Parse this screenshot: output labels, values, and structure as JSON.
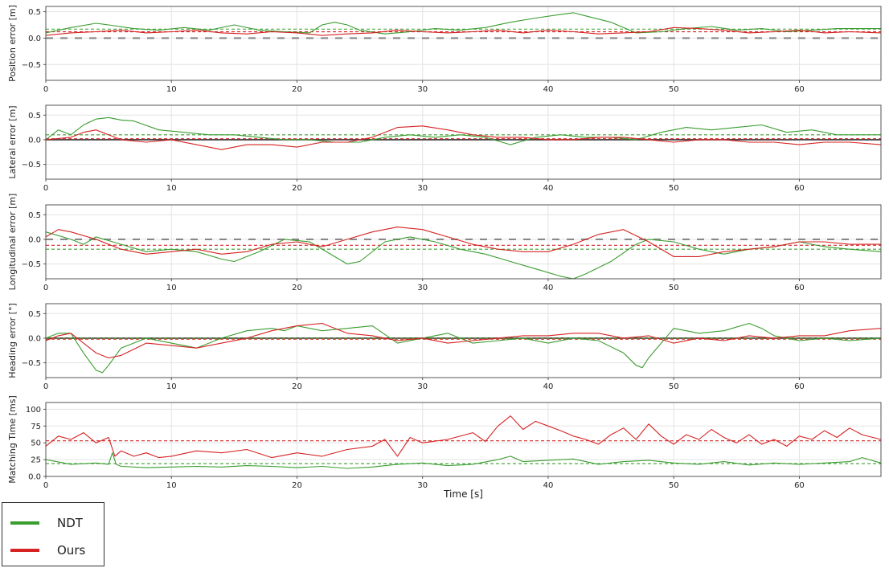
{
  "chart_data": {
    "type": "line",
    "xlabel": "Time [s]",
    "xlim": [
      0,
      66.5
    ],
    "xticks": [
      0,
      10,
      20,
      30,
      40,
      50,
      60
    ],
    "grid": true,
    "legend": {
      "placement": "bottom-left",
      "entries": [
        {
          "name": "NDT",
          "color": "#3a9d2f"
        },
        {
          "name": "Ours",
          "color": "#d62222"
        }
      ]
    },
    "subplots": [
      {
        "ylabel": "Position error [m]",
        "ylim": [
          -0.8,
          0.6
        ],
        "yticks": [
          -0.5,
          0.0,
          0.5
        ],
        "zero_ref": {
          "style": "long-dash",
          "color": "#888888",
          "value": 0.0
        },
        "mean_lines": [
          {
            "series": "NDT",
            "value": 0.17
          },
          {
            "series": "Ours",
            "value": 0.12
          }
        ],
        "series": [
          {
            "name": "NDT",
            "x": [
              0,
              2,
              4,
              5,
              7,
              9,
              11,
              13,
              15,
              17,
              19,
              21,
              22,
              23,
              24,
              25,
              27,
              29,
              31,
              33,
              35,
              37,
              39,
              41,
              42,
              43,
              45,
              47,
              49,
              51,
              53,
              55,
              57,
              59,
              61,
              63,
              66.5
            ],
            "y": [
              0.1,
              0.2,
              0.28,
              0.25,
              0.18,
              0.15,
              0.2,
              0.15,
              0.25,
              0.15,
              0.12,
              0.1,
              0.25,
              0.3,
              0.25,
              0.15,
              0.08,
              0.12,
              0.18,
              0.15,
              0.2,
              0.3,
              0.38,
              0.45,
              0.48,
              0.42,
              0.3,
              0.1,
              0.12,
              0.18,
              0.22,
              0.15,
              0.18,
              0.12,
              0.15,
              0.18,
              0.18
            ]
          },
          {
            "name": "Ours",
            "x": [
              0,
              2,
              4,
              6,
              8,
              10,
              12,
              14,
              16,
              18,
              20,
              22,
              24,
              26,
              28,
              30,
              32,
              34,
              36,
              38,
              40,
              42,
              44,
              46,
              48,
              50,
              52,
              54,
              56,
              58,
              60,
              62,
              64,
              66.5
            ],
            "y": [
              0.05,
              0.1,
              0.12,
              0.15,
              0.1,
              0.12,
              0.15,
              0.1,
              0.08,
              0.12,
              0.1,
              0.05,
              0.08,
              0.1,
              0.15,
              0.12,
              0.1,
              0.12,
              0.15,
              0.1,
              0.15,
              0.12,
              0.08,
              0.1,
              0.12,
              0.2,
              0.18,
              0.15,
              0.1,
              0.12,
              0.15,
              0.1,
              0.12,
              0.1
            ]
          }
        ]
      },
      {
        "ylabel": "Lateral error [m]",
        "ylim": [
          -0.8,
          0.7
        ],
        "yticks": [
          -0.5,
          0.0,
          0.5
        ],
        "zero_ref": {
          "style": "solid",
          "color": "#333333",
          "value": 0.0
        },
        "mean_lines": [
          {
            "series": "NDT",
            "value": 0.1
          },
          {
            "series": "Ours",
            "value": 0.02
          }
        ],
        "series": [
          {
            "name": "NDT",
            "x": [
              0,
              1,
              2,
              3,
              4,
              5,
              6,
              7,
              9,
              11,
              13,
              15,
              17,
              19,
              21,
              23,
              25,
              27,
              29,
              31,
              33,
              35,
              37,
              39,
              41,
              43,
              45,
              47,
              49,
              51,
              53,
              55,
              57,
              59,
              61,
              63,
              66.5
            ],
            "y": [
              0.0,
              0.2,
              0.1,
              0.3,
              0.42,
              0.45,
              0.4,
              0.38,
              0.2,
              0.15,
              0.1,
              0.1,
              0.05,
              0.0,
              0.0,
              -0.05,
              -0.05,
              0.05,
              0.1,
              0.05,
              0.1,
              0.05,
              -0.1,
              0.05,
              0.1,
              0.05,
              0.05,
              0.0,
              0.15,
              0.25,
              0.2,
              0.25,
              0.3,
              0.15,
              0.2,
              0.1,
              0.1
            ]
          },
          {
            "name": "Ours",
            "x": [
              0,
              2,
              3,
              4,
              5,
              6,
              8,
              10,
              12,
              14,
              16,
              18,
              20,
              22,
              24,
              26,
              28,
              30,
              32,
              34,
              36,
              38,
              40,
              42,
              44,
              46,
              48,
              50,
              52,
              54,
              56,
              58,
              60,
              62,
              64,
              66.5
            ],
            "y": [
              0.0,
              0.05,
              0.15,
              0.2,
              0.1,
              0.0,
              -0.05,
              0.0,
              -0.1,
              -0.2,
              -0.1,
              -0.1,
              -0.15,
              -0.05,
              -0.05,
              0.05,
              0.25,
              0.28,
              0.2,
              0.1,
              0.05,
              0.05,
              0.0,
              0.0,
              0.05,
              0.05,
              0.0,
              -0.05,
              0.0,
              0.0,
              -0.05,
              -0.05,
              -0.1,
              -0.05,
              -0.05,
              -0.1
            ]
          }
        ]
      },
      {
        "ylabel": "Longitudinal error [m]",
        "ylim": [
          -0.8,
          0.7
        ],
        "yticks": [
          -0.5,
          0.0,
          0.5
        ],
        "zero_ref": {
          "style": "long-dash",
          "color": "#888888",
          "value": 0.0
        },
        "mean_lines": [
          {
            "series": "NDT",
            "value": -0.2
          },
          {
            "series": "Ours",
            "value": -0.12
          }
        ],
        "series": [
          {
            "name": "NDT",
            "x": [
              0,
              2,
              3,
              4,
              6,
              8,
              10,
              12,
              14,
              15,
              17,
              19,
              21,
              23,
              24,
              25,
              27,
              29,
              31,
              33,
              35,
              37,
              39,
              41,
              42,
              43,
              45,
              47,
              48,
              50,
              52,
              54,
              56,
              58,
              60,
              62,
              64,
              66.5
            ],
            "y": [
              0.15,
              0.0,
              -0.1,
              0.05,
              -0.1,
              -0.25,
              -0.2,
              -0.25,
              -0.4,
              -0.45,
              -0.25,
              0.0,
              -0.05,
              -0.35,
              -0.5,
              -0.45,
              -0.05,
              0.05,
              -0.05,
              -0.2,
              -0.3,
              -0.45,
              -0.6,
              -0.75,
              -0.8,
              -0.7,
              -0.45,
              -0.1,
              0.0,
              -0.05,
              -0.2,
              -0.3,
              -0.2,
              -0.15,
              -0.05,
              -0.15,
              -0.2,
              -0.25
            ]
          },
          {
            "name": "Ours",
            "x": [
              0,
              1,
              2,
              4,
              6,
              8,
              10,
              12,
              14,
              16,
              18,
              20,
              22,
              24,
              26,
              28,
              30,
              32,
              34,
              36,
              38,
              40,
              42,
              44,
              46,
              48,
              50,
              52,
              54,
              56,
              58,
              60,
              62,
              64,
              66.5
            ],
            "y": [
              0.05,
              0.2,
              0.15,
              0.0,
              -0.2,
              -0.3,
              -0.25,
              -0.2,
              -0.3,
              -0.25,
              -0.1,
              -0.05,
              -0.15,
              0.0,
              0.15,
              0.25,
              0.2,
              0.05,
              -0.1,
              -0.2,
              -0.25,
              -0.25,
              -0.1,
              0.1,
              0.2,
              -0.05,
              -0.35,
              -0.35,
              -0.25,
              -0.2,
              -0.15,
              -0.05,
              -0.05,
              -0.1,
              -0.1
            ]
          }
        ]
      },
      {
        "ylabel": "Heading error [°]",
        "ylim": [
          -0.8,
          0.7
        ],
        "yticks": [
          -0.5,
          0.0,
          0.5
        ],
        "zero_ref": {
          "style": "solid",
          "color": "#333333",
          "value": 0.0
        },
        "mean_lines": [
          {
            "series": "NDT",
            "value": 0.0
          },
          {
            "series": "Ours",
            "value": -0.02
          }
        ],
        "series": [
          {
            "name": "NDT",
            "x": [
              0,
              1,
              2,
              3,
              4,
              4.5,
              5,
              6,
              8,
              10,
              12,
              14,
              16,
              18,
              19,
              20,
              22,
              24,
              26,
              28,
              30,
              32,
              34,
              36,
              38,
              40,
              42,
              44,
              46,
              47,
              47.5,
              48,
              50,
              52,
              54,
              56,
              57,
              58,
              60,
              62,
              64,
              66.5
            ],
            "y": [
              0.0,
              0.1,
              0.1,
              -0.3,
              -0.65,
              -0.7,
              -0.55,
              -0.2,
              0.0,
              -0.1,
              -0.2,
              0.0,
              0.15,
              0.2,
              0.15,
              0.25,
              0.15,
              0.2,
              0.25,
              -0.1,
              0.0,
              0.1,
              -0.1,
              -0.05,
              0.0,
              -0.1,
              0.0,
              -0.05,
              -0.3,
              -0.55,
              -0.6,
              -0.4,
              0.2,
              0.1,
              0.15,
              0.3,
              0.2,
              0.05,
              -0.05,
              0.0,
              -0.05,
              0.0
            ]
          },
          {
            "name": "Ours",
            "x": [
              0,
              1,
              2,
              3,
              4,
              5,
              6,
              8,
              10,
              12,
              14,
              16,
              18,
              20,
              22,
              24,
              26,
              28,
              30,
              32,
              34,
              36,
              38,
              40,
              42,
              44,
              46,
              48,
              50,
              52,
              54,
              56,
              58,
              60,
              62,
              64,
              66.5
            ],
            "y": [
              -0.05,
              0.05,
              0.1,
              -0.1,
              -0.3,
              -0.4,
              -0.35,
              -0.1,
              -0.15,
              -0.2,
              -0.1,
              0.0,
              0.15,
              0.25,
              0.3,
              0.1,
              0.05,
              -0.05,
              0.0,
              -0.1,
              -0.05,
              0.0,
              0.05,
              0.05,
              0.1,
              0.1,
              0.0,
              0.05,
              -0.1,
              0.0,
              -0.05,
              0.05,
              0.0,
              0.05,
              0.05,
              0.15,
              0.2
            ]
          }
        ]
      },
      {
        "ylabel": "Matching Time [ms]",
        "ylim": [
          0,
          110
        ],
        "yticks": [
          0,
          25,
          50,
          75,
          100
        ],
        "zero_ref": null,
        "mean_lines": [
          {
            "series": "NDT",
            "value": 19
          },
          {
            "series": "Ours",
            "value": 53
          }
        ],
        "series": [
          {
            "name": "NDT",
            "x": [
              0,
              2,
              4,
              5,
              5.3,
              5.6,
              6,
              8,
              10,
              12,
              14,
              16,
              18,
              20,
              22,
              24,
              26,
              28,
              30,
              32,
              34,
              36,
              37,
              38,
              40,
              42,
              44,
              46,
              48,
              50,
              52,
              54,
              56,
              58,
              60,
              62,
              64,
              65,
              66.5
            ],
            "y": [
              25,
              18,
              20,
              18,
              35,
              18,
              15,
              13,
              14,
              15,
              14,
              16,
              15,
              13,
              15,
              12,
              14,
              18,
              20,
              16,
              18,
              25,
              30,
              22,
              24,
              26,
              18,
              22,
              24,
              20,
              18,
              22,
              17,
              20,
              18,
              20,
              22,
              28,
              20
            ]
          },
          {
            "name": "Ours",
            "x": [
              0,
              1,
              2,
              3,
              4,
              5,
              5.5,
              6,
              7,
              8,
              9,
              10,
              12,
              14,
              16,
              18,
              20,
              22,
              24,
              26,
              27,
              28,
              29,
              30,
              32,
              34,
              35,
              36,
              37,
              38,
              39,
              40,
              41,
              42,
              43,
              44,
              45,
              46,
              47,
              48,
              49,
              50,
              51,
              52,
              53,
              54,
              55,
              56,
              57,
              58,
              59,
              60,
              61,
              62,
              63,
              64,
              65,
              66.5
            ],
            "y": [
              45,
              60,
              55,
              65,
              50,
              58,
              30,
              38,
              30,
              35,
              28,
              30,
              38,
              35,
              40,
              28,
              35,
              30,
              40,
              45,
              55,
              30,
              58,
              50,
              55,
              65,
              52,
              75,
              90,
              70,
              82,
              75,
              68,
              60,
              55,
              48,
              62,
              72,
              55,
              78,
              60,
              48,
              62,
              55,
              70,
              58,
              50,
              62,
              48,
              55,
              45,
              60,
              55,
              68,
              58,
              72,
              62,
              55
            ]
          }
        ]
      }
    ]
  }
}
